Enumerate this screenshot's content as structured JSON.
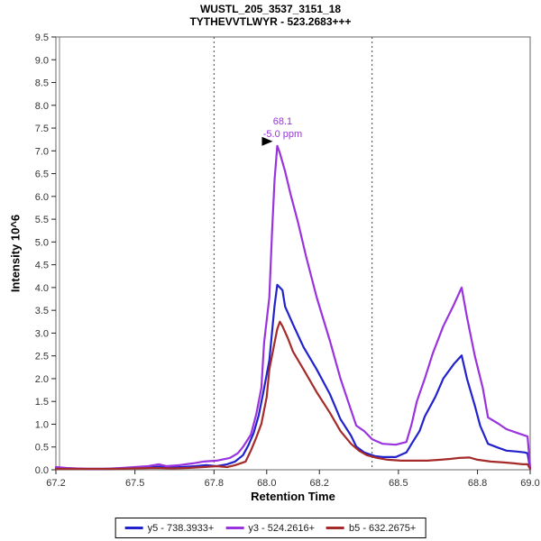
{
  "title": {
    "line1": "WUSTL_205_3537_3151_18",
    "line2": "TYTHEVVTLWYR - 523.2683+++"
  },
  "axes": {
    "x": {
      "label": "Retention Time",
      "min": 67.2,
      "max": 69.0,
      "tick_values": [
        67.2,
        67.5,
        67.8,
        68.0,
        68.2,
        68.5,
        68.8,
        69.0
      ],
      "tick_labels": [
        "67.2",
        "67.5",
        "67.8",
        "68.0",
        "68.2",
        "68.5",
        "68.8",
        "69.0"
      ]
    },
    "y": {
      "label": "Intensity 10^6",
      "min": 0.0,
      "max": 9.5,
      "tick_step": 0.5,
      "tick_labels": [
        "0.0",
        "0.5",
        "1.0",
        "1.5",
        "2.0",
        "2.5",
        "3.0",
        "3.5",
        "4.0",
        "4.5",
        "5.0",
        "5.5",
        "6.0",
        "6.5",
        "7.0",
        "7.5",
        "8.0",
        "8.5",
        "9.0",
        "9.5"
      ]
    }
  },
  "annotation": {
    "line1": "68.1",
    "line2": "-5.0 ppm",
    "color": "#9933DD",
    "peak_rt": 68.04,
    "peak_intensity": 7.11,
    "arrow_icon": "right-pointing-triangle"
  },
  "colors": {
    "frame": "#808080",
    "tick_text": "#333333",
    "boundary_line": "#444444"
  },
  "integration_boundaries": [
    67.8,
    68.4
  ],
  "chart_data": {
    "type": "line",
    "title": "WUSTL_205_3537_3151_18 / TYTHEVVTLWYR - 523.2683+++",
    "xlabel": "Retention Time",
    "ylabel": "Intensity 10^6",
    "xlim": [
      67.2,
      69.0
    ],
    "ylim": [
      0.0,
      9.5
    ],
    "grid": false,
    "legend_position": "bottom-center",
    "boundaries": [
      67.8,
      68.4
    ],
    "series": [
      {
        "name": "y5 - 738.3933+",
        "color": "#2222CC",
        "points": [
          [
            67.2,
            0.04
          ],
          [
            67.25,
            0.03
          ],
          [
            67.32,
            0.02
          ],
          [
            67.4,
            0.02
          ],
          [
            67.46,
            0.03
          ],
          [
            67.52,
            0.04
          ],
          [
            67.59,
            0.07
          ],
          [
            67.63,
            0.05
          ],
          [
            67.68,
            0.06
          ],
          [
            67.73,
            0.08
          ],
          [
            67.77,
            0.1
          ],
          [
            67.81,
            0.08
          ],
          [
            67.85,
            0.12
          ],
          [
            67.88,
            0.18
          ],
          [
            67.91,
            0.32
          ],
          [
            67.93,
            0.53
          ],
          [
            67.95,
            0.8
          ],
          [
            67.97,
            1.2
          ],
          [
            67.99,
            1.79
          ],
          [
            68.01,
            2.4
          ],
          [
            68.02,
            3.0
          ],
          [
            68.03,
            3.6
          ],
          [
            68.04,
            4.06
          ],
          [
            68.06,
            3.94
          ],
          [
            68.07,
            3.58
          ],
          [
            68.1,
            3.19
          ],
          [
            68.14,
            2.69
          ],
          [
            68.19,
            2.2
          ],
          [
            68.24,
            1.66
          ],
          [
            68.28,
            1.11
          ],
          [
            68.32,
            0.75
          ],
          [
            68.34,
            0.51
          ],
          [
            68.37,
            0.38
          ],
          [
            68.41,
            0.3
          ],
          [
            68.44,
            0.28
          ],
          [
            68.49,
            0.28
          ],
          [
            68.53,
            0.38
          ],
          [
            68.55,
            0.57
          ],
          [
            68.58,
            0.85
          ],
          [
            68.6,
            1.17
          ],
          [
            68.64,
            1.6
          ],
          [
            68.67,
            2.0
          ],
          [
            68.71,
            2.32
          ],
          [
            68.74,
            2.51
          ],
          [
            68.76,
            2.0
          ],
          [
            68.79,
            1.41
          ],
          [
            68.81,
            0.97
          ],
          [
            68.84,
            0.57
          ],
          [
            68.88,
            0.48
          ],
          [
            68.91,
            0.42
          ],
          [
            68.95,
            0.4
          ],
          [
            68.98,
            0.38
          ],
          [
            68.99,
            0.36
          ],
          [
            69.0,
            0.02
          ]
        ]
      },
      {
        "name": "y3 - 524.2616+",
        "color": "#9933DD",
        "points": [
          [
            67.2,
            0.06
          ],
          [
            67.24,
            0.04
          ],
          [
            67.31,
            0.02
          ],
          [
            67.38,
            0.02
          ],
          [
            67.45,
            0.04
          ],
          [
            67.5,
            0.06
          ],
          [
            67.55,
            0.08
          ],
          [
            67.59,
            0.12
          ],
          [
            67.62,
            0.08
          ],
          [
            67.67,
            0.1
          ],
          [
            67.72,
            0.14
          ],
          [
            67.76,
            0.18
          ],
          [
            67.81,
            0.2
          ],
          [
            67.86,
            0.26
          ],
          [
            67.89,
            0.36
          ],
          [
            67.91,
            0.5
          ],
          [
            67.94,
            0.77
          ],
          [
            67.96,
            1.21
          ],
          [
            67.98,
            1.8
          ],
          [
            67.99,
            2.79
          ],
          [
            68.01,
            3.78
          ],
          [
            68.02,
            5.17
          ],
          [
            68.03,
            6.36
          ],
          [
            68.04,
            7.11
          ],
          [
            68.05,
            6.95
          ],
          [
            68.07,
            6.55
          ],
          [
            68.09,
            6.06
          ],
          [
            68.12,
            5.41
          ],
          [
            68.15,
            4.67
          ],
          [
            68.19,
            3.78
          ],
          [
            68.24,
            2.83
          ],
          [
            68.28,
            2.0
          ],
          [
            68.32,
            1.31
          ],
          [
            68.34,
            0.97
          ],
          [
            68.37,
            0.85
          ],
          [
            68.4,
            0.67
          ],
          [
            68.44,
            0.57
          ],
          [
            68.49,
            0.55
          ],
          [
            68.53,
            0.61
          ],
          [
            68.55,
            1.0
          ],
          [
            68.57,
            1.5
          ],
          [
            68.6,
            2.0
          ],
          [
            68.63,
            2.55
          ],
          [
            68.67,
            3.15
          ],
          [
            68.71,
            3.62
          ],
          [
            68.74,
            4.0
          ],
          [
            68.76,
            3.35
          ],
          [
            68.79,
            2.5
          ],
          [
            68.82,
            1.8
          ],
          [
            68.84,
            1.15
          ],
          [
            68.88,
            1.01
          ],
          [
            68.91,
            0.89
          ],
          [
            68.95,
            0.81
          ],
          [
            68.98,
            0.75
          ],
          [
            68.99,
            0.73
          ],
          [
            69.0,
            0.04
          ]
        ]
      },
      {
        "name": "b5 - 632.2675+",
        "color": "#A52A2A",
        "points": [
          [
            67.2,
            0.02
          ],
          [
            67.26,
            0.02
          ],
          [
            67.34,
            0.02
          ],
          [
            67.42,
            0.02
          ],
          [
            67.5,
            0.03
          ],
          [
            67.58,
            0.04
          ],
          [
            67.64,
            0.03
          ],
          [
            67.7,
            0.04
          ],
          [
            67.76,
            0.06
          ],
          [
            67.81,
            0.08
          ],
          [
            67.85,
            0.06
          ],
          [
            67.88,
            0.1
          ],
          [
            67.92,
            0.18
          ],
          [
            67.94,
            0.42
          ],
          [
            67.96,
            0.7
          ],
          [
            67.98,
            1.01
          ],
          [
            68.0,
            1.6
          ],
          [
            68.01,
            2.2
          ],
          [
            68.03,
            2.79
          ],
          [
            68.04,
            3.09
          ],
          [
            68.05,
            3.25
          ],
          [
            68.06,
            3.15
          ],
          [
            68.08,
            2.89
          ],
          [
            68.1,
            2.59
          ],
          [
            68.14,
            2.2
          ],
          [
            68.19,
            1.7
          ],
          [
            68.24,
            1.25
          ],
          [
            68.28,
            0.85
          ],
          [
            68.32,
            0.57
          ],
          [
            68.35,
            0.42
          ],
          [
            68.38,
            0.32
          ],
          [
            68.42,
            0.26
          ],
          [
            68.46,
            0.22
          ],
          [
            68.51,
            0.2
          ],
          [
            68.56,
            0.2
          ],
          [
            68.61,
            0.2
          ],
          [
            68.66,
            0.22
          ],
          [
            68.7,
            0.24
          ],
          [
            68.73,
            0.26
          ],
          [
            68.77,
            0.27
          ],
          [
            68.8,
            0.22
          ],
          [
            68.85,
            0.18
          ],
          [
            68.9,
            0.16
          ],
          [
            68.94,
            0.14
          ],
          [
            68.97,
            0.12
          ],
          [
            68.99,
            0.12
          ],
          [
            69.0,
            0.02
          ]
        ]
      }
    ],
    "annotation": {
      "text": [
        "68.1",
        "-5.0 ppm"
      ],
      "at_rt": 68.04
    }
  }
}
